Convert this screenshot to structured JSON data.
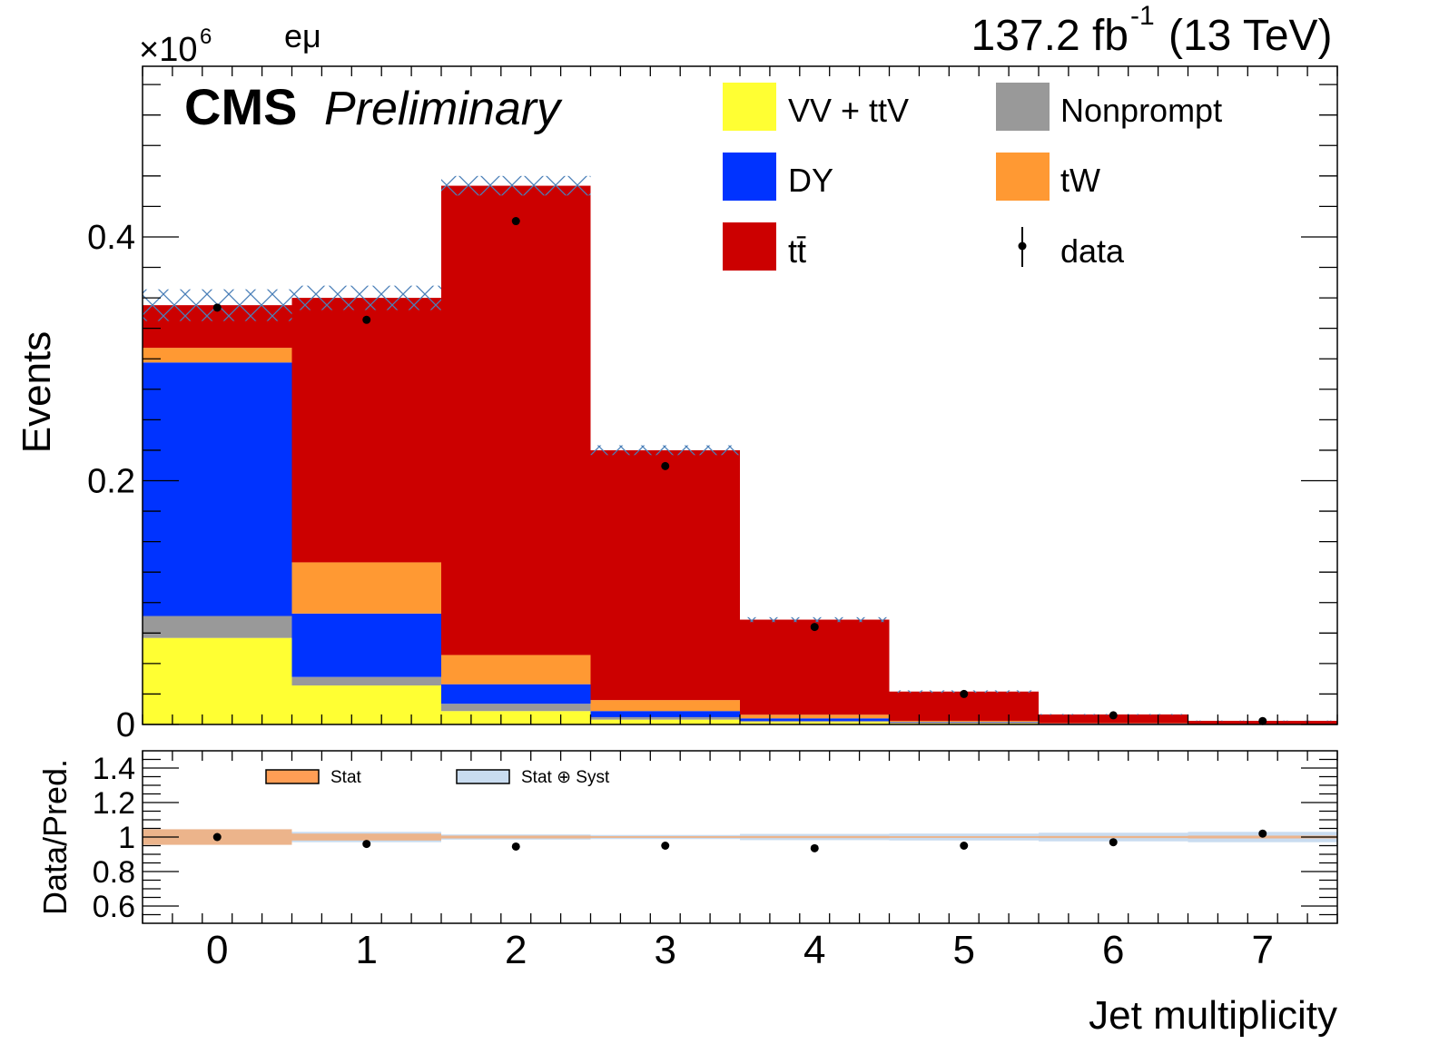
{
  "header": {
    "exponent_base": "×10",
    "exponent_power": "6",
    "channel": "eμ",
    "lumi": "137.2 fb",
    "lumi_power": "-1",
    "energy": "(13 TeV)",
    "cms": "CMS",
    "preliminary": "Preliminary"
  },
  "legend": {
    "items": [
      {
        "label": "VV + ttV",
        "color": "#ffff33"
      },
      {
        "label": "Nonprompt",
        "color": "#999999"
      },
      {
        "label": "DY",
        "color": "#0033ff"
      },
      {
        "label": "tW",
        "color": "#ff9933"
      },
      {
        "label": "tt̄",
        "color": "#cc0000"
      },
      {
        "label": "data",
        "color": "#000000"
      }
    ]
  },
  "ratio_legend": {
    "stat": "Stat",
    "stat_color": "#ff9e55",
    "statsyst": "Stat ⊕ Syst",
    "statsyst_color": "#c9dcf0"
  },
  "chart_data": [
    {
      "type": "bar",
      "stacked": true,
      "xlabel": "Jet multiplicity",
      "ylabel": "Events",
      "categories": [
        "0",
        "1",
        "2",
        "3",
        "4",
        "5",
        "6",
        "7"
      ],
      "xlim": [
        -0.5,
        7.5
      ],
      "ylim": [
        0,
        0.54
      ],
      "y_scale_note": "×10^6",
      "yticks": [
        "0",
        "0.2",
        "0.4"
      ],
      "series": [
        {
          "name": "VV + ttV",
          "color": "#ffff33",
          "values": [
            0.071,
            0.032,
            0.011,
            0.004,
            0.002,
            0.001,
            0.0003,
            0.0001
          ]
        },
        {
          "name": "Nonprompt",
          "color": "#999999",
          "values": [
            0.018,
            0.007,
            0.006,
            0.002,
            0.001,
            0.0005,
            0.0002,
            0.0001
          ]
        },
        {
          "name": "DY",
          "color": "#0033ff",
          "values": [
            0.208,
            0.052,
            0.016,
            0.005,
            0.002,
            0.0005,
            0.0002,
            0.0001
          ]
        },
        {
          "name": "tW",
          "color": "#ff9933",
          "values": [
            0.012,
            0.042,
            0.024,
            0.009,
            0.003,
            0.001,
            0.0003,
            0.0001
          ]
        },
        {
          "name": "tt̄",
          "color": "#cc0000",
          "values": [
            0.035,
            0.217,
            0.385,
            0.205,
            0.078,
            0.024,
            0.0072,
            0.0026
          ]
        }
      ],
      "uncertainty_band": {
        "values": [
          0.013,
          0.01,
          0.008,
          0.004,
          0.002,
          0.001,
          0.0004,
          0.0002
        ]
      },
      "data": {
        "name": "data",
        "values": [
          0.342,
          0.332,
          0.413,
          0.212,
          0.08,
          0.025,
          0.0075,
          0.0028
        ]
      }
    },
    {
      "type": "scatter",
      "ylabel": "Data/Pred.",
      "xlabel": "Jet multiplicity",
      "categories": [
        "0",
        "1",
        "2",
        "3",
        "4",
        "5",
        "6",
        "7"
      ],
      "ylim": [
        0.5,
        1.5
      ],
      "yticks": [
        "0.6",
        "0.8",
        "1",
        "1.2",
        "1.4"
      ],
      "ratio": [
        1.0,
        0.96,
        0.945,
        0.95,
        0.935,
        0.95,
        0.97,
        1.02
      ],
      "stat_band": [
        0.045,
        0.02,
        0.008,
        0.005,
        0.006,
        0.005,
        0.006,
        0.008
      ],
      "statsyst_band": [
        0.045,
        0.03,
        0.015,
        0.012,
        0.018,
        0.02,
        0.025,
        0.03
      ]
    }
  ]
}
